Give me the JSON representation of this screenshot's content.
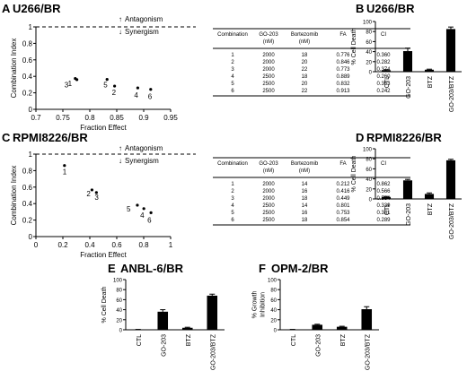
{
  "figure": {
    "panel_letters": [
      "A",
      "B",
      "C",
      "D",
      "E",
      "F"
    ],
    "panel_titles": [
      "U266/BR",
      "U266/BR",
      "RPMI8226/BR",
      "RPMI8226/BR",
      "ANBL-6/BR",
      "OPM-2/BR"
    ]
  },
  "ci_legend": {
    "antagonism": "Antagonism",
    "synergism": "Synergism",
    "up_arrow": "↑",
    "down_arrow": "↓"
  },
  "ci_table": {
    "headers": [
      "Combination",
      "GO-203\n(nM)",
      "Bortezomib\n(nM)",
      "FA",
      "CI"
    ],
    "A_rows": [
      [
        "1",
        "2000",
        "18",
        "0.776",
        "0.360"
      ],
      [
        "2",
        "2000",
        "20",
        "0.846",
        "0.282"
      ],
      [
        "3",
        "2000",
        "22",
        "0.773",
        "0.374"
      ],
      [
        "4",
        "2500",
        "18",
        "0.889",
        "0.260"
      ],
      [
        "5",
        "2500",
        "20",
        "0.832",
        "0.363"
      ],
      [
        "6",
        "2500",
        "22",
        "0.913",
        "0.242"
      ]
    ],
    "C_rows": [
      [
        "1",
        "2000",
        "14",
        "0.212",
        "0.862"
      ],
      [
        "2",
        "2000",
        "16",
        "0.416",
        "0.566"
      ],
      [
        "3",
        "2000",
        "18",
        "0.449",
        "0.534"
      ],
      [
        "4",
        "2500",
        "14",
        "0.801",
        "0.339"
      ],
      [
        "5",
        "2500",
        "16",
        "0.753",
        "0.381"
      ],
      [
        "6",
        "2500",
        "18",
        "0.854",
        "0.289"
      ]
    ]
  },
  "chart_data": [
    {
      "panel": "A",
      "type": "scatter",
      "xlabel": "Fraction Effect",
      "ylabel": "Combination Index",
      "xlim": [
        0.7,
        0.95
      ],
      "ylim": [
        0,
        1
      ],
      "xticks": [
        "0.7",
        "0.75",
        "0.8",
        "0.85",
        "0.9",
        "0.95"
      ],
      "yticks": [
        "0",
        "0.2",
        "0.4",
        "0.6",
        "0.8",
        "1"
      ],
      "reference_line_y": 1,
      "points": [
        {
          "label": "1",
          "x": 0.776,
          "y": 0.36
        },
        {
          "label": "2",
          "x": 0.846,
          "y": 0.282
        },
        {
          "label": "3",
          "x": 0.773,
          "y": 0.374
        },
        {
          "label": "4",
          "x": 0.889,
          "y": 0.26
        },
        {
          "label": "5",
          "x": 0.832,
          "y": 0.363
        },
        {
          "label": "6",
          "x": 0.913,
          "y": 0.242
        }
      ]
    },
    {
      "panel": "C",
      "type": "scatter",
      "xlabel": "Fraction Effect",
      "ylabel": "Combination Index",
      "xlim": [
        0,
        1
      ],
      "ylim": [
        0,
        1
      ],
      "xticks": [
        "0",
        "0.2",
        "0.4",
        "0.6",
        "0.8",
        "1"
      ],
      "yticks": [
        "0",
        "0.2",
        "0.4",
        "0.6",
        "0.8",
        "1"
      ],
      "reference_line_y": 1,
      "points": [
        {
          "label": "1",
          "x": 0.212,
          "y": 0.862
        },
        {
          "label": "2",
          "x": 0.416,
          "y": 0.566
        },
        {
          "label": "3",
          "x": 0.449,
          "y": 0.534
        },
        {
          "label": "4",
          "x": 0.801,
          "y": 0.339
        },
        {
          "label": "5",
          "x": 0.753,
          "y": 0.381
        },
        {
          "label": "6",
          "x": 0.854,
          "y": 0.289
        }
      ]
    },
    {
      "panel": "B",
      "type": "bar",
      "ylabel": "% Cell Death",
      "categories": [
        "CTL",
        "GO-203",
        "BTZ",
        "GO-203/BTZ"
      ],
      "values": [
        3,
        41,
        4,
        85
      ],
      "errors": [
        1,
        6,
        1,
        4
      ],
      "ylim": [
        0,
        100
      ],
      "yticks": [
        "0",
        "20",
        "40",
        "60",
        "80",
        "100"
      ]
    },
    {
      "panel": "D",
      "type": "bar",
      "ylabel": "% Cell Death",
      "categories": [
        "CTL",
        "GO-203",
        "BTZ",
        "GO-203/BTZ"
      ],
      "values": [
        4,
        37,
        10,
        77
      ],
      "errors": [
        1,
        2,
        2,
        2
      ],
      "ylim": [
        0,
        100
      ],
      "yticks": [
        "0",
        "20",
        "40",
        "60",
        "80",
        "100"
      ]
    },
    {
      "panel": "E",
      "type": "bar",
      "ylabel": "% Cell Death",
      "categories": [
        "CTL",
        "GO-203",
        "BTZ",
        "GO-203/BTZ"
      ],
      "values": [
        0.5,
        36,
        4,
        68
      ],
      "errors": [
        0.3,
        4,
        1,
        3
      ],
      "ylim": [
        0,
        100
      ],
      "yticks": [
        "0",
        "20",
        "40",
        "60",
        "80",
        "100"
      ]
    },
    {
      "panel": "F",
      "type": "bar",
      "ylabel": "% Growth\nInhibition",
      "categories": [
        "CTL",
        "GO-203",
        "BTZ",
        "GO-203/BTZ"
      ],
      "values": [
        0.5,
        10,
        6,
        41
      ],
      "errors": [
        0.3,
        1,
        1,
        5
      ],
      "ylim": [
        0,
        100
      ],
      "yticks": [
        "0",
        "20",
        "40",
        "60",
        "80",
        "100"
      ]
    }
  ]
}
